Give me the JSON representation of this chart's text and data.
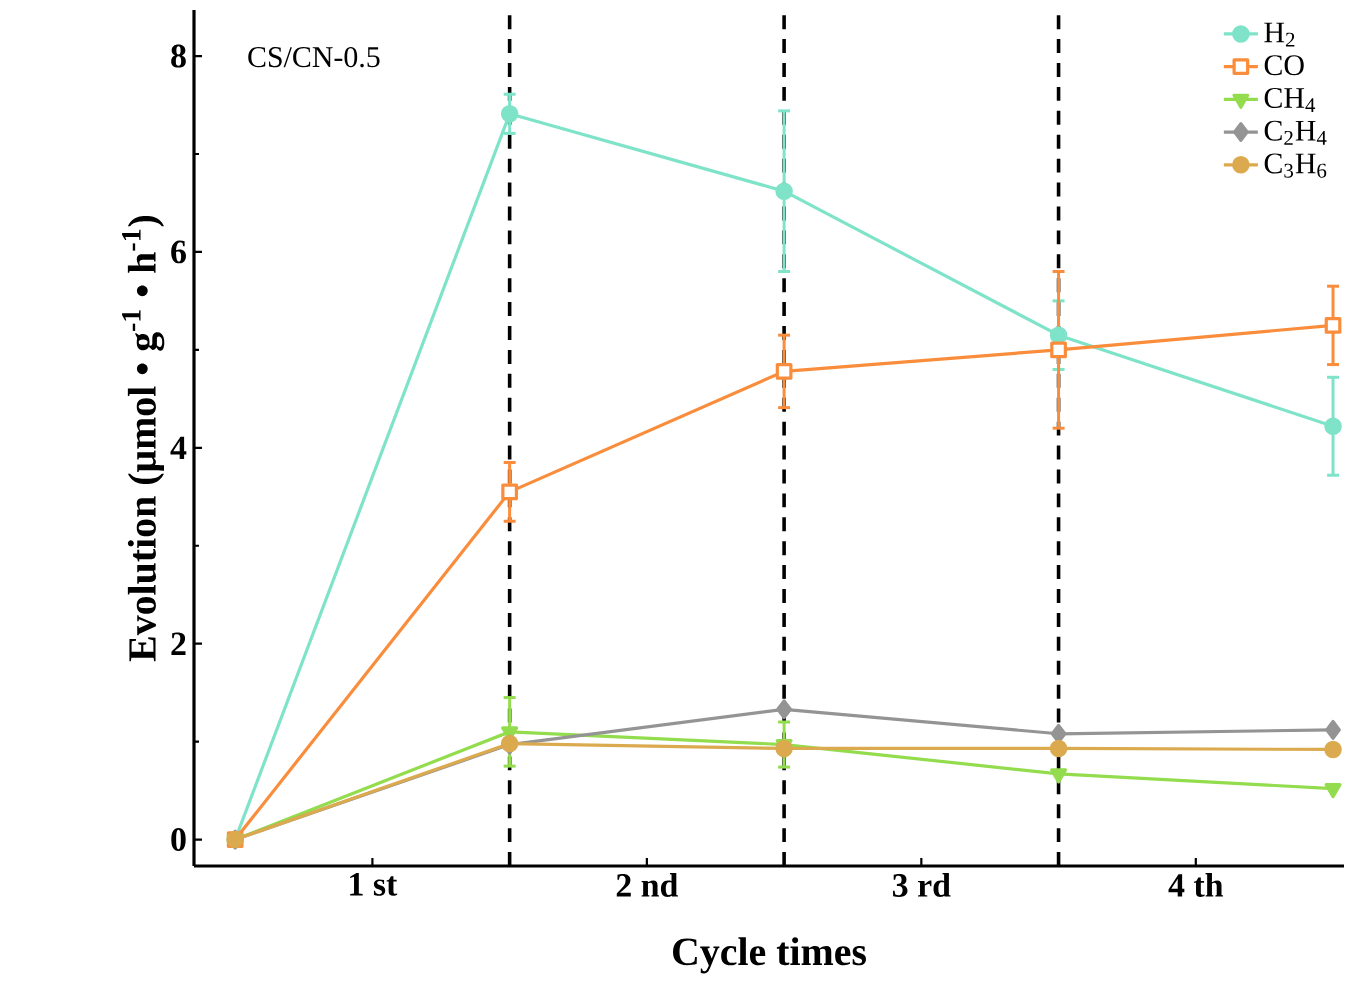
{
  "chart_data": {
    "type": "line",
    "xlabel": "Cycle times",
    "ylabel": "Evolution (μmol • g$^{-1}$ • h$^{-1}$)",
    "annotations": [
      "CS/CN-0.5"
    ],
    "x": [
      0,
      1,
      2,
      3,
      4
    ],
    "xlim": [
      -0.15,
      4.04
    ],
    "xticks": [
      {
        "value": 0.5,
        "label": "1 st"
      },
      {
        "value": 1.5,
        "label": "2 nd"
      },
      {
        "value": 2.5,
        "label": "3 rd"
      },
      {
        "value": 3.5,
        "label": "4 th"
      }
    ],
    "ylim": [
      -0.27,
      8.47
    ],
    "yticks": [
      0,
      2,
      4,
      6,
      8
    ],
    "legend": "top right",
    "grid": false,
    "ref_lines": [
      {
        "axis": "x",
        "value": 1,
        "color": "#000000",
        "line_style": "dashed"
      },
      {
        "axis": "x",
        "value": 2,
        "color": "#000000",
        "line_style": "dashed"
      },
      {
        "axis": "x",
        "value": 3,
        "color": "#000000",
        "line_style": "dashed"
      }
    ],
    "series": [
      {
        "name": "H$_{2}$",
        "color": "#7ee3c8",
        "marker": "circle",
        "values": [
          0,
          7.41,
          6.62,
          5.15,
          4.22
        ],
        "errors": [
          null,
          0.2,
          0.82,
          0.35,
          0.5
        ]
      },
      {
        "name": "CO",
        "color": "#f98d3c",
        "marker": "square",
        "values": [
          0,
          3.55,
          4.78,
          5.0,
          5.25
        ],
        "errors": [
          null,
          0.3,
          0.37,
          0.8,
          0.4
        ]
      },
      {
        "name": "CH$_{4}$",
        "color": "#93dc4e",
        "marker": "triangle",
        "values": [
          0,
          1.1,
          0.97,
          0.67,
          0.52
        ],
        "errors": [
          null,
          0.35,
          0.23,
          null,
          null
        ]
      },
      {
        "name": "C$_{2}$H$_{4}$",
        "color": "#949494",
        "marker": "diamond",
        "values": [
          0,
          0.97,
          1.33,
          1.08,
          1.12
        ]
      },
      {
        "name": "C$_{3}$H$_{6}$",
        "color": "#dcaa4e",
        "marker": "circle",
        "values": [
          0,
          0.98,
          0.93,
          0.93,
          0.92
        ]
      }
    ]
  }
}
